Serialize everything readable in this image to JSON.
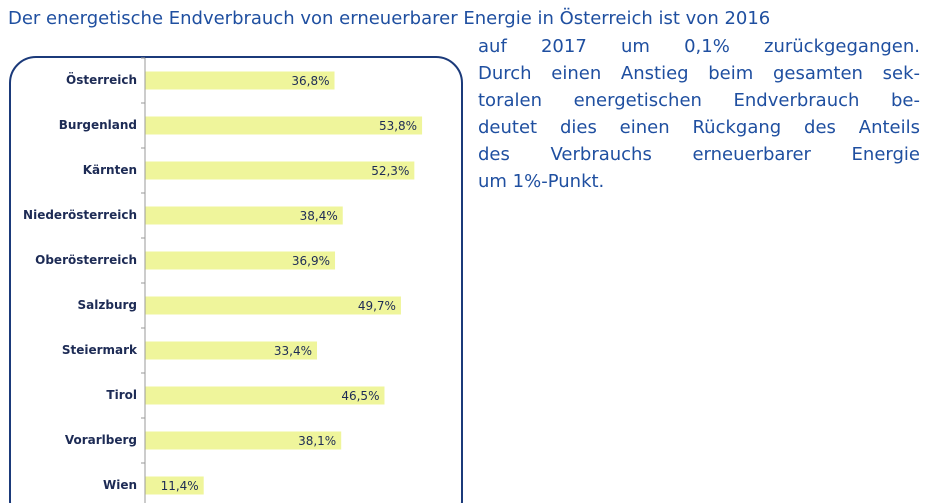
{
  "text_lines": [
    "Der energetische Endverbrauch von erneuerbarer Energie in Österreich ist von 2016",
    "auf 2017 um 0,1% zurückgegangen.",
    "Durch einen Anstieg beim gesamten sek-",
    "toralen energetischen Endverbrauch be-",
    "deutet dies einen Rückgang des Anteils",
    "des Verbrauchs erneuerbarer Energie",
    "um 1%-Punkt."
  ],
  "chart_data": {
    "type": "hbar",
    "categories": [
      "Österreich",
      "Burgenland",
      "Kärnten",
      "Niederösterreich",
      "Oberösterreich",
      "Salzburg",
      "Steiermark",
      "Tirol",
      "Vorarlberg",
      "Wien"
    ],
    "values": [
      36.8,
      53.8,
      52.3,
      38.4,
      36.9,
      49.7,
      33.4,
      46.5,
      38.1,
      11.4
    ],
    "value_labels": [
      "36,8%",
      "53,8%",
      "52,3%",
      "38,4%",
      "36,9%",
      "49,7%",
      "33,4%",
      "46,5%",
      "38,1%",
      "11,4%"
    ],
    "color": "#eff59b",
    "xlim": [
      0,
      60
    ]
  }
}
